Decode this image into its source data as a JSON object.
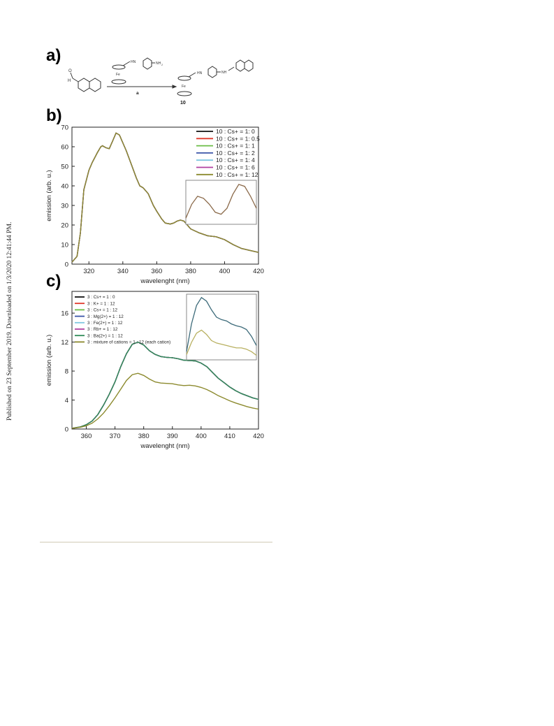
{
  "side_note": "Published on 23 September 2019. Downloaded on 1/3/2020 12:41:44 PM.",
  "scheme": {
    "panel_label": "a)",
    "fe_label": "Fe",
    "hn_label": "HN",
    "nh_label": "NH",
    "nh2_label": "NH",
    "h_label": "H",
    "o_label": "O",
    "arrow_label": "a",
    "compound_label": "10"
  },
  "chart_data": [
    {
      "type": "line",
      "panel_label": "b)",
      "xlabel": "wavelenght (nm)",
      "ylabel": "emission (arb. u.)",
      "xlim": [
        310,
        420
      ],
      "ylim": [
        0,
        70
      ],
      "xticks": [
        320,
        340,
        360,
        380,
        400,
        420
      ],
      "yticks": [
        0,
        10,
        20,
        30,
        40,
        50,
        60,
        70
      ],
      "grid": false,
      "legend_position": "top-right",
      "x": [
        310,
        313,
        315,
        317,
        320,
        322,
        325,
        327,
        328,
        330,
        332,
        334,
        336,
        338,
        340,
        342,
        345,
        348,
        350,
        352,
        355,
        358,
        360,
        363,
        365,
        368,
        370,
        372,
        374,
        376,
        378,
        380,
        385,
        390,
        395,
        400,
        405,
        410,
        415,
        420
      ],
      "series": [
        {
          "name": "10 : Cs+ = 1: 0",
          "color": "#111111",
          "values": [
            1,
            4,
            16,
            38,
            48,
            52,
            57,
            60,
            60.5,
            59.5,
            59,
            63,
            67,
            66,
            62,
            58,
            51,
            44,
            40,
            39,
            36,
            30,
            27,
            23,
            21,
            20.5,
            21,
            22,
            22.5,
            22,
            20,
            18,
            16,
            14.5,
            14,
            12.5,
            10,
            8,
            7,
            6
          ]
        },
        {
          "name": "10 : Cs+ = 1: 0.5",
          "color": "#e0392b",
          "values": [
            1,
            4,
            16,
            38,
            48,
            52,
            57,
            60,
            60.5,
            59.5,
            59,
            63,
            67,
            66,
            62,
            58,
            51,
            44,
            40,
            39,
            36,
            30,
            27,
            23,
            21,
            20.5,
            21,
            22,
            22.5,
            22,
            20,
            18,
            16,
            14.5,
            14,
            12.5,
            10,
            8,
            7,
            6
          ]
        },
        {
          "name": "10 : Cs+ = 1: 1",
          "color": "#6bbd45",
          "values": [
            1,
            4,
            16,
            38,
            48,
            52,
            57,
            60,
            60.5,
            59.5,
            59,
            63,
            67,
            66,
            62,
            58,
            51,
            44,
            40,
            39,
            36,
            30,
            27,
            23,
            21,
            20.5,
            21,
            22,
            22.5,
            22,
            20,
            18,
            16,
            14.5,
            14,
            12.5,
            10,
            8,
            7,
            6
          ]
        },
        {
          "name": "10 : Cs+ = 1: 2",
          "color": "#3b55a8",
          "values": [
            1,
            4,
            16,
            38,
            48,
            52,
            57,
            60,
            60.5,
            59.5,
            59,
            63,
            67,
            66,
            62,
            58,
            51,
            44,
            40,
            39,
            36,
            30,
            27,
            23,
            21,
            20.5,
            21,
            22,
            22.5,
            22,
            20,
            18,
            16,
            14.5,
            14,
            12.5,
            10,
            8,
            7,
            6
          ]
        },
        {
          "name": "10 : Cs+ = 1: 4",
          "color": "#7fc8e0",
          "values": [
            1,
            4,
            16,
            38,
            48,
            52,
            57,
            60,
            60.5,
            59.5,
            59,
            63,
            67,
            66,
            62,
            58,
            51,
            44,
            40,
            39,
            36,
            30,
            27,
            23,
            21,
            20.5,
            21,
            22,
            22.5,
            22,
            20,
            18,
            16,
            14.5,
            14,
            12.5,
            10,
            8,
            7,
            6
          ]
        },
        {
          "name": "10 : Cs+ = 1: 6",
          "color": "#b040a0",
          "values": [
            1,
            4,
            16,
            38,
            48,
            52,
            57,
            60,
            60.5,
            59.5,
            59,
            63,
            67,
            66,
            62,
            58,
            51,
            44,
            40,
            39,
            36,
            30,
            27,
            23,
            21,
            20.5,
            21,
            22,
            22.5,
            22,
            20,
            18,
            16,
            14.5,
            14,
            12.5,
            10,
            8,
            7,
            6
          ]
        },
        {
          "name": "10 : Cs+ = 1: 12",
          "color": "#8c8a2e",
          "values": [
            1,
            4,
            16,
            38,
            48,
            52,
            57,
            60,
            60.5,
            59.5,
            59,
            63,
            67,
            66,
            62,
            58,
            51,
            44,
            40,
            39,
            36,
            30,
            27,
            23,
            21,
            20.5,
            21,
            22,
            22.5,
            22,
            20,
            18,
            16,
            14.5,
            14,
            12.5,
            10,
            8,
            7,
            6
          ]
        }
      ],
      "inset": {
        "type": "line",
        "note": "zoom of overlapping curves",
        "values": [
          0.1,
          0.45,
          0.65,
          0.6,
          0.45,
          0.25,
          0.2,
          0.35,
          0.7,
          0.95,
          0.9,
          0.65,
          0.35
        ]
      }
    },
    {
      "type": "line",
      "panel_label": "c)",
      "xlabel": "wavelenght (nm)",
      "ylabel": "emission (arb. u.)",
      "xlim": [
        355,
        420
      ],
      "ylim": [
        0,
        19
      ],
      "xticks": [
        360,
        370,
        380,
        390,
        400,
        410,
        420
      ],
      "yticks": [
        0,
        4,
        8,
        12,
        16
      ],
      "grid": false,
      "legend_position": "top-left",
      "x": [
        355,
        358,
        360,
        362,
        364,
        366,
        368,
        370,
        372,
        374,
        376,
        378,
        380,
        382,
        384,
        386,
        388,
        390,
        392,
        394,
        396,
        398,
        400,
        402,
        404,
        406,
        408,
        410,
        412,
        414,
        416,
        418,
        420
      ],
      "series": [
        {
          "name": "3 : Cs+ = 1 : 0",
          "color": "#111111",
          "values": [
            0.1,
            0.3,
            0.6,
            1.1,
            2.0,
            3.3,
            4.8,
            6.5,
            8.6,
            10.4,
            11.7,
            12.0,
            11.6,
            10.8,
            10.3,
            10.0,
            9.9,
            9.85,
            9.7,
            9.5,
            9.45,
            9.4,
            9.1,
            8.6,
            7.8,
            7.0,
            6.4,
            5.8,
            5.3,
            4.9,
            4.6,
            4.3,
            4.1
          ]
        },
        {
          "name": "3 : K+ = 1 : 12",
          "color": "#e0392b",
          "values": [
            0.1,
            0.3,
            0.6,
            1.1,
            2.0,
            3.3,
            4.8,
            6.5,
            8.6,
            10.4,
            11.7,
            12.0,
            11.6,
            10.8,
            10.3,
            10.0,
            9.9,
            9.85,
            9.7,
            9.5,
            9.45,
            9.4,
            9.1,
            8.6,
            7.8,
            7.0,
            6.4,
            5.8,
            5.3,
            4.9,
            4.6,
            4.3,
            4.1
          ]
        },
        {
          "name": "3 : Cs+ = 1 : 12",
          "color": "#6bbd45",
          "values": [
            0.1,
            0.3,
            0.6,
            1.1,
            2.0,
            3.3,
            4.8,
            6.5,
            8.6,
            10.4,
            11.7,
            12.0,
            11.6,
            10.8,
            10.3,
            10.0,
            9.9,
            9.85,
            9.7,
            9.5,
            9.45,
            9.4,
            9.1,
            8.6,
            7.8,
            7.0,
            6.4,
            5.8,
            5.3,
            4.9,
            4.6,
            4.3,
            4.1
          ]
        },
        {
          "name": "3 : Mg(2+) = 1 : 12",
          "color": "#3b55a8",
          "values": [
            0.1,
            0.3,
            0.6,
            1.1,
            2.0,
            3.3,
            4.8,
            6.5,
            8.6,
            10.4,
            11.7,
            12.0,
            11.6,
            10.8,
            10.3,
            10.0,
            9.9,
            9.85,
            9.7,
            9.5,
            9.45,
            9.4,
            9.1,
            8.6,
            7.8,
            7.0,
            6.4,
            5.8,
            5.3,
            4.9,
            4.6,
            4.3,
            4.1
          ]
        },
        {
          "name": "3 : Fe(2+) = 1 : 12",
          "color": "#7fc8e0",
          "values": [
            0.1,
            0.3,
            0.6,
            1.1,
            2.0,
            3.3,
            4.8,
            6.5,
            8.6,
            10.4,
            11.7,
            12.0,
            11.6,
            10.8,
            10.3,
            10.0,
            9.9,
            9.85,
            9.7,
            9.5,
            9.45,
            9.4,
            9.1,
            8.6,
            7.8,
            7.0,
            6.4,
            5.8,
            5.3,
            4.9,
            4.6,
            4.3,
            4.1
          ]
        },
        {
          "name": "3 : Rb+ = 1 : 12",
          "color": "#b040a0",
          "values": [
            0.1,
            0.3,
            0.6,
            1.1,
            2.0,
            3.3,
            4.8,
            6.5,
            8.6,
            10.4,
            11.7,
            12.0,
            11.6,
            10.8,
            10.3,
            10.0,
            9.9,
            9.85,
            9.7,
            9.5,
            9.45,
            9.4,
            9.1,
            8.6,
            7.8,
            7.0,
            6.4,
            5.8,
            5.3,
            4.9,
            4.6,
            4.3,
            4.1
          ]
        },
        {
          "name": "3 : Ba(2+) = 1 : 12",
          "color": "#2e8b57",
          "values": [
            0.1,
            0.3,
            0.6,
            1.1,
            2.0,
            3.3,
            4.8,
            6.5,
            8.6,
            10.4,
            11.7,
            12.0,
            11.6,
            10.8,
            10.3,
            10.0,
            9.9,
            9.85,
            9.7,
            9.5,
            9.45,
            9.4,
            9.1,
            8.6,
            7.8,
            7.0,
            6.4,
            5.8,
            5.3,
            4.9,
            4.6,
            4.3,
            4.1
          ]
        },
        {
          "name": "3 : mixture of cations = 1 : 12 (each cation)",
          "color": "#8c8a2e",
          "values": [
            0.1,
            0.25,
            0.45,
            0.8,
            1.4,
            2.2,
            3.2,
            4.3,
            5.5,
            6.7,
            7.5,
            7.7,
            7.4,
            6.9,
            6.5,
            6.35,
            6.3,
            6.25,
            6.1,
            6.0,
            6.05,
            5.95,
            5.75,
            5.45,
            5.05,
            4.6,
            4.25,
            3.9,
            3.6,
            3.35,
            3.1,
            2.9,
            2.75
          ]
        }
      ],
      "inset": {
        "type": "line",
        "series": [
          {
            "values": [
              0.1,
              0.55,
              0.85,
              0.98,
              0.92,
              0.78,
              0.66,
              0.62,
              0.6,
              0.55,
              0.52,
              0.5,
              0.46,
              0.35,
              0.2
            ]
          },
          {
            "values": [
              0.05,
              0.25,
              0.4,
              0.45,
              0.38,
              0.28,
              0.24,
              0.22,
              0.2,
              0.18,
              0.16,
              0.16,
              0.14,
              0.1,
              0.04
            ]
          }
        ]
      }
    }
  ]
}
